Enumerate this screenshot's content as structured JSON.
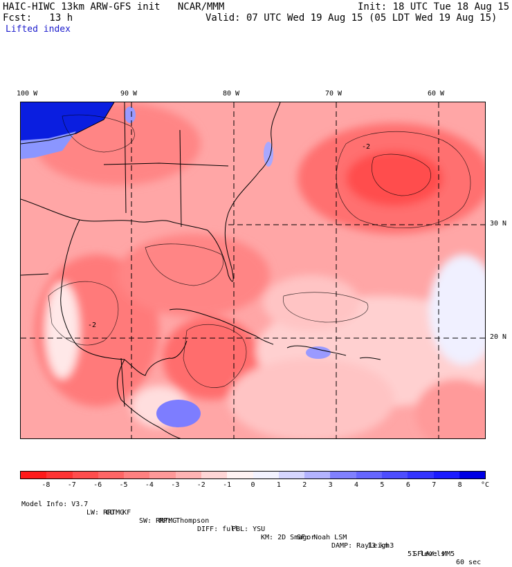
{
  "header": {
    "line1_left": "HAIC-HIWC 13km ARW-GFS init   NCAR/MMM",
    "line1_right": "Init: 18 UTC Tue 18 Aug 15",
    "line2_left": "Fcst:   13 h",
    "line2_right": "Valid: 07 UTC Wed 19 Aug 15 (05 LDT Wed 19 Aug 15)",
    "field": "Lifted index"
  },
  "map": {
    "lon_labels": [
      "100 W",
      "90 W",
      "80 W",
      "70 W",
      "60 W"
    ],
    "lat_labels": [
      "30 N",
      "20 N"
    ],
    "contour_label": "-2"
  },
  "colorbar": {
    "ticks": [
      "-8",
      "-7",
      "-6",
      "-5",
      "-4",
      "-3",
      "-2",
      "-1",
      "0",
      "1",
      "2",
      "3",
      "4",
      "5",
      "6",
      "7",
      "8"
    ],
    "unit": "°C",
    "colors": [
      "#ff1a1a",
      "#ff3333",
      "#ff4d4d",
      "#ff6666",
      "#ff8080",
      "#ff9999",
      "#ffb3b3",
      "#ffd6d6",
      "#fff3f3",
      "#f3f3ff",
      "#d6d6ff",
      "#b3b3ff",
      "#8080ff",
      "#6666ff",
      "#4d4dff",
      "#3333ff",
      "#1a1aff",
      "#0000e6"
    ]
  },
  "footer": {
    "line1": [
      "Model Info: V3.7",
      "CU: KF",
      "MP: Thompson",
      "PBL: YSU",
      "SF: Noah LSM",
      "13 km",
      "51 levels",
      "60 sec"
    ],
    "line2": [
      "LW: RRTMG",
      "SW: RRTMG",
      "DIFF: full",
      "KM: 2D Smagor",
      "DAMP: Rayleigh3",
      "SFLAY: MM5"
    ]
  }
}
